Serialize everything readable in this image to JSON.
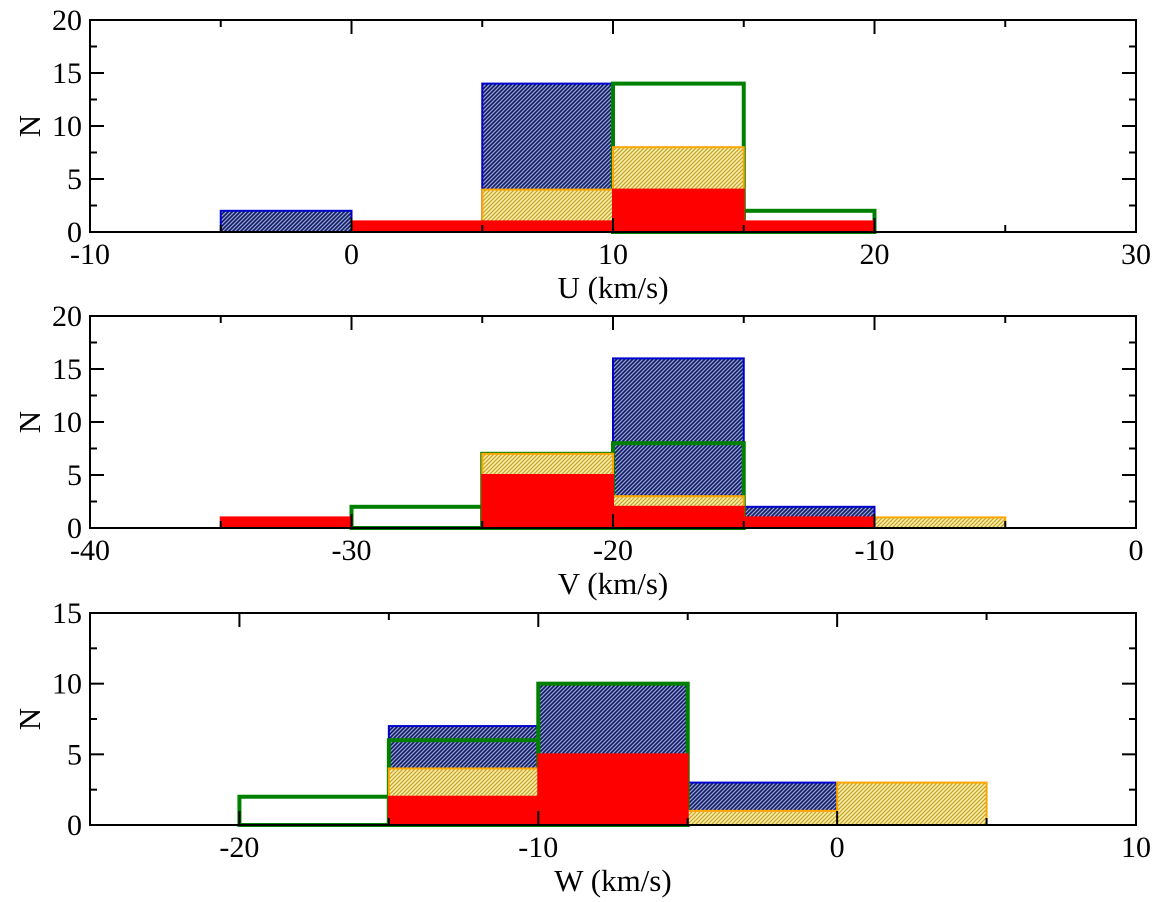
{
  "chart_data": [
    {
      "type": "bar",
      "xlabel": "U (km/s)",
      "ylabel": "N",
      "xlim": [
        -10,
        30
      ],
      "ylim": [
        0,
        20
      ],
      "xticks": [
        -10,
        0,
        10,
        20,
        30
      ],
      "yticks": [
        0,
        5,
        10,
        15,
        20
      ],
      "bin_edges": [
        -5,
        0,
        5,
        10,
        15,
        20,
        25
      ],
      "series": [
        {
          "style": "hatched",
          "color": "#0000cc",
          "values": [
            2,
            0,
            14,
            0,
            0,
            0
          ]
        },
        {
          "style": "outline",
          "color": "#008000",
          "values": [
            0,
            0,
            0,
            14,
            2,
            0
          ]
        },
        {
          "style": "hatched",
          "color": "#ffa500",
          "values": [
            0,
            0,
            4,
            8,
            0,
            0
          ]
        },
        {
          "style": "filled",
          "color": "#ff0000",
          "values": [
            0,
            1,
            1,
            4,
            1,
            0
          ]
        }
      ]
    },
    {
      "type": "bar",
      "xlabel": "V (km/s)",
      "ylabel": "N",
      "xlim": [
        -40,
        0
      ],
      "ylim": [
        0,
        20
      ],
      "xticks": [
        -40,
        -30,
        -20,
        -10,
        0
      ],
      "yticks": [
        0,
        5,
        10,
        15,
        20
      ],
      "bin_edges": [
        -35,
        -30,
        -25,
        -20,
        -15,
        -10,
        -5
      ],
      "series": [
        {
          "style": "hatched",
          "color": "#0000cc",
          "values": [
            0,
            0,
            0,
            16,
            2,
            0
          ]
        },
        {
          "style": "outline",
          "color": "#008000",
          "values": [
            0,
            2,
            7,
            8,
            0,
            0
          ]
        },
        {
          "style": "hatched",
          "color": "#ffa500",
          "values": [
            0,
            0,
            7,
            3,
            0,
            1
          ]
        },
        {
          "style": "filled",
          "color": "#ff0000",
          "values": [
            1,
            0,
            5,
            2,
            1,
            0
          ]
        }
      ]
    },
    {
      "type": "bar",
      "xlabel": "W (km/s)",
      "ylabel": "N",
      "xlim": [
        -25,
        10
      ],
      "ylim": [
        0,
        15
      ],
      "xticks": [
        -20,
        -10,
        0,
        10
      ],
      "yticks": [
        0,
        5,
        10,
        15
      ],
      "bin_edges": [
        -20,
        -15,
        -10,
        -5,
        0,
        5
      ],
      "series": [
        {
          "style": "hatched",
          "color": "#0000cc",
          "values": [
            0,
            7,
            10,
            3,
            0
          ]
        },
        {
          "style": "outline",
          "color": "#008000",
          "values": [
            2,
            6,
            10,
            0,
            0
          ]
        },
        {
          "style": "hatched",
          "color": "#ffa500",
          "values": [
            0,
            4,
            0,
            1,
            3
          ]
        },
        {
          "style": "filled",
          "color": "#ff0000",
          "values": [
            0,
            2,
            5,
            0,
            0
          ]
        }
      ]
    }
  ]
}
